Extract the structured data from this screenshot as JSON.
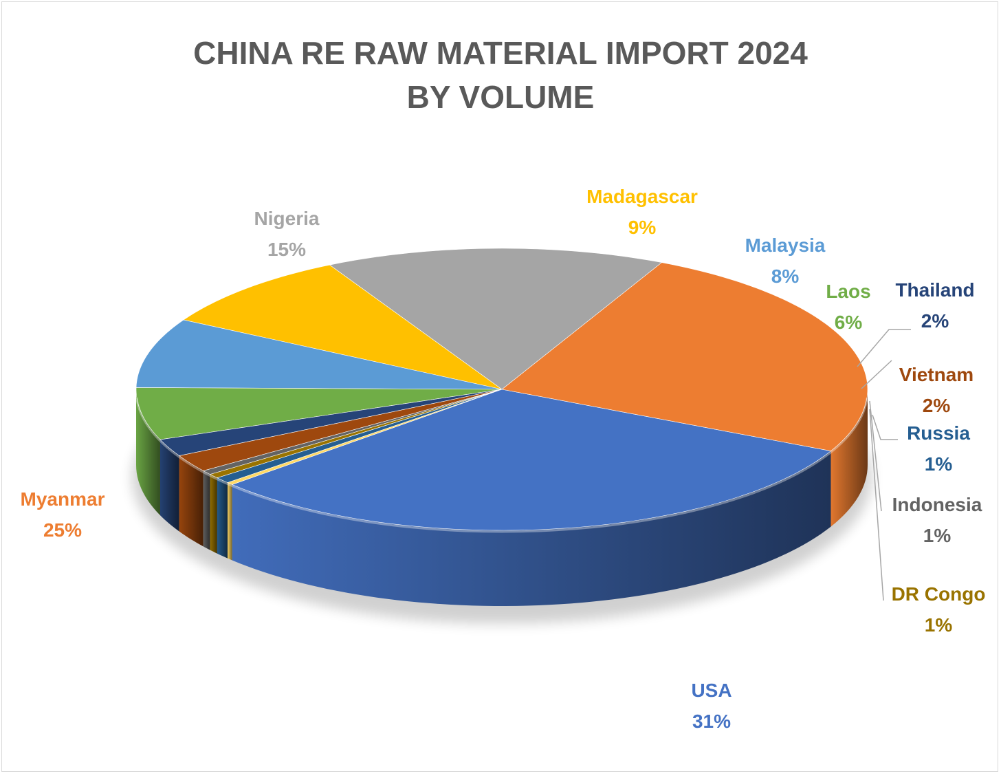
{
  "chart_data": {
    "type": "pie",
    "title_line1": "CHINA RE RAW MATERIAL IMPORT 2024",
    "title_line2": "BY VOLUME",
    "slices": [
      {
        "label": "USA",
        "value": 31,
        "pct_label": "31%",
        "color": "#4472C4",
        "label_color": "#4472C4"
      },
      {
        "label": "Myanmar",
        "value": 25,
        "pct_label": "25%",
        "color": "#ED7D31",
        "label_color": "#ED7D31"
      },
      {
        "label": "Nigeria",
        "value": 15,
        "pct_label": "15%",
        "color": "#A5A5A5",
        "label_color": "#A5A5A5"
      },
      {
        "label": "Madagascar",
        "value": 9,
        "pct_label": "9%",
        "color": "#FFC000",
        "label_color": "#FFC000"
      },
      {
        "label": "Malaysia",
        "value": 8,
        "pct_label": "8%",
        "color": "#5B9BD5",
        "label_color": "#5B9BD5"
      },
      {
        "label": "Laos",
        "value": 6,
        "pct_label": "6%",
        "color": "#70AD47",
        "label_color": "#70AD47"
      },
      {
        "label": "Thailand",
        "value": 2,
        "pct_label": "2%",
        "color": "#264478",
        "label_color": "#264478"
      },
      {
        "label": "Vietnam",
        "value": 2,
        "pct_label": "2%",
        "color": "#9E480E",
        "label_color": "#9E480E"
      },
      {
        "label": "Indonesia",
        "value": 0.5,
        "pct_label": "1%",
        "color": "#636363",
        "label_color": "#636363"
      },
      {
        "label": "DR Congo",
        "value": 0.5,
        "pct_label": "1%",
        "color": "#997300",
        "label_color": "#997300"
      },
      {
        "label": "Russia",
        "value": 0.7,
        "pct_label": "1%",
        "color": "#255E91",
        "label_color": "#255E91"
      },
      {
        "label": "",
        "value": 0.3,
        "pct_label": "",
        "color": "#FFD966",
        "label_color": "#FFD966"
      }
    ]
  }
}
